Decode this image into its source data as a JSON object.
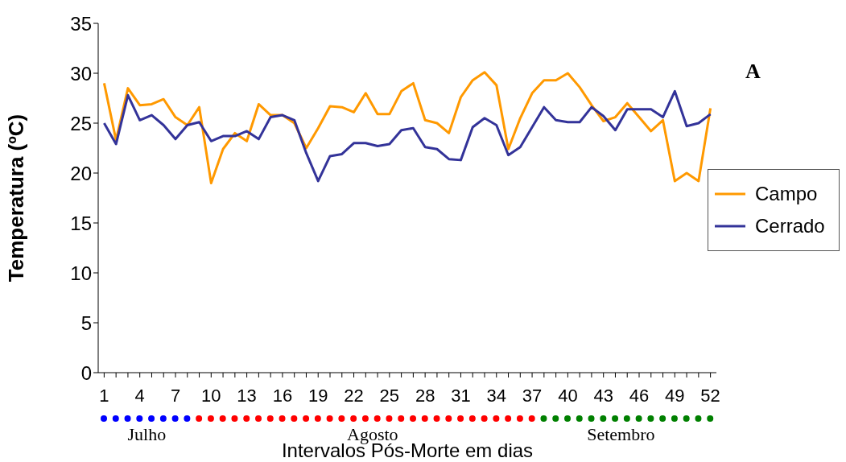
{
  "chart_data": {
    "type": "line",
    "xlabel": "Intervalos Pós-Morte em dias",
    "ylabel": "Temperatura (ºC)",
    "x": [
      1,
      2,
      3,
      4,
      5,
      6,
      7,
      8,
      9,
      10,
      11,
      12,
      13,
      14,
      15,
      16,
      17,
      18,
      19,
      20,
      21,
      22,
      23,
      24,
      25,
      26,
      27,
      28,
      29,
      30,
      31,
      32,
      33,
      34,
      35,
      36,
      37,
      38,
      39,
      40,
      41,
      42,
      43,
      44,
      45,
      46,
      47,
      48,
      49,
      50,
      51,
      52
    ],
    "series": [
      {
        "name": "Campo",
        "color": "#ff9900",
        "values": [
          29,
          23.3,
          28.5,
          26.8,
          26.9,
          27.4,
          25.6,
          24.8,
          26.6,
          19.0,
          22.4,
          24.0,
          23.2,
          26.9,
          25.8,
          25.8,
          25.0,
          22.5,
          24.5,
          26.7,
          26.6,
          26.1,
          28.0,
          25.9,
          25.9,
          28.2,
          29.0,
          25.3,
          25.0,
          24.0,
          27.6,
          29.3,
          30.1,
          28.8,
          22.4,
          25.5,
          28.0,
          29.3,
          29.3,
          30.0,
          28.6,
          26.8,
          25.2,
          25.6,
          27.0,
          25.6,
          24.2,
          25.3,
          19.2,
          20.0,
          19.2,
          26.5
        ]
      },
      {
        "name": "Cerrado",
        "color": "#333399",
        "values": [
          25.0,
          22.9,
          27.8,
          25.3,
          25.8,
          24.8,
          23.4,
          24.8,
          25.1,
          23.2,
          23.7,
          23.7,
          24.2,
          23.4,
          25.6,
          25.8,
          25.3,
          22.0,
          19.2,
          21.7,
          21.9,
          23.0,
          23.0,
          22.7,
          22.9,
          24.3,
          24.5,
          22.6,
          22.4,
          21.4,
          21.3,
          24.6,
          25.5,
          24.8,
          21.8,
          22.6,
          24.6,
          26.6,
          25.3,
          25.1,
          25.1,
          26.6,
          25.7,
          24.3,
          26.4,
          26.4,
          26.4,
          25.6,
          28.2,
          24.7,
          25.0,
          25.9
        ]
      }
    ],
    "xlim": [
      0.5,
      52.5
    ],
    "xticks": [
      1,
      {
        "value": 2,
        "label": null
      },
      {
        "value": 3,
        "label": null
      },
      4,
      {
        "value": 5,
        "label": null
      },
      {
        "value": 6,
        "label": null
      },
      7,
      {
        "value": 8,
        "label": null
      },
      {
        "value": 9,
        "label": null
      },
      10,
      {
        "value": 11,
        "label": null
      },
      {
        "value": 12,
        "label": null
      },
      13,
      {
        "value": 14,
        "label": null
      },
      {
        "value": 15,
        "label": null
      },
      16,
      {
        "value": 17,
        "label": null
      },
      {
        "value": 18,
        "label": null
      },
      19,
      {
        "value": 20,
        "label": null
      },
      {
        "value": 21,
        "label": null
      },
      22,
      {
        "value": 23,
        "label": null
      },
      {
        "value": 24,
        "label": null
      },
      25,
      {
        "value": 26,
        "label": null
      },
      {
        "value": 27,
        "label": null
      },
      28,
      {
        "value": 29,
        "label": null
      },
      {
        "value": 30,
        "label": null
      },
      31,
      {
        "value": 32,
        "label": null
      },
      {
        "value": 33,
        "label": null
      },
      34,
      {
        "value": 35,
        "label": null
      },
      {
        "value": 36,
        "label": null
      },
      37,
      {
        "value": 38,
        "label": null
      },
      {
        "value": 39,
        "label": null
      },
      40,
      {
        "value": 41,
        "label": null
      },
      {
        "value": 42,
        "label": null
      },
      43,
      {
        "value": 44,
        "label": null
      },
      {
        "value": 45,
        "label": null
      },
      46,
      {
        "value": 47,
        "label": null
      },
      {
        "value": 48,
        "label": null
      },
      49,
      {
        "value": 50,
        "label": null
      },
      {
        "value": 51,
        "label": null
      },
      52
    ],
    "ylim": [
      0,
      35
    ],
    "yticks": [
      0,
      5,
      10,
      15,
      20,
      25,
      30,
      35
    ],
    "grid": false,
    "legend": "right",
    "marker": "none",
    "line_style": "solid",
    "annotations": [
      "A",
      "Julho",
      "Agosto",
      "Setembro"
    ]
  }
}
